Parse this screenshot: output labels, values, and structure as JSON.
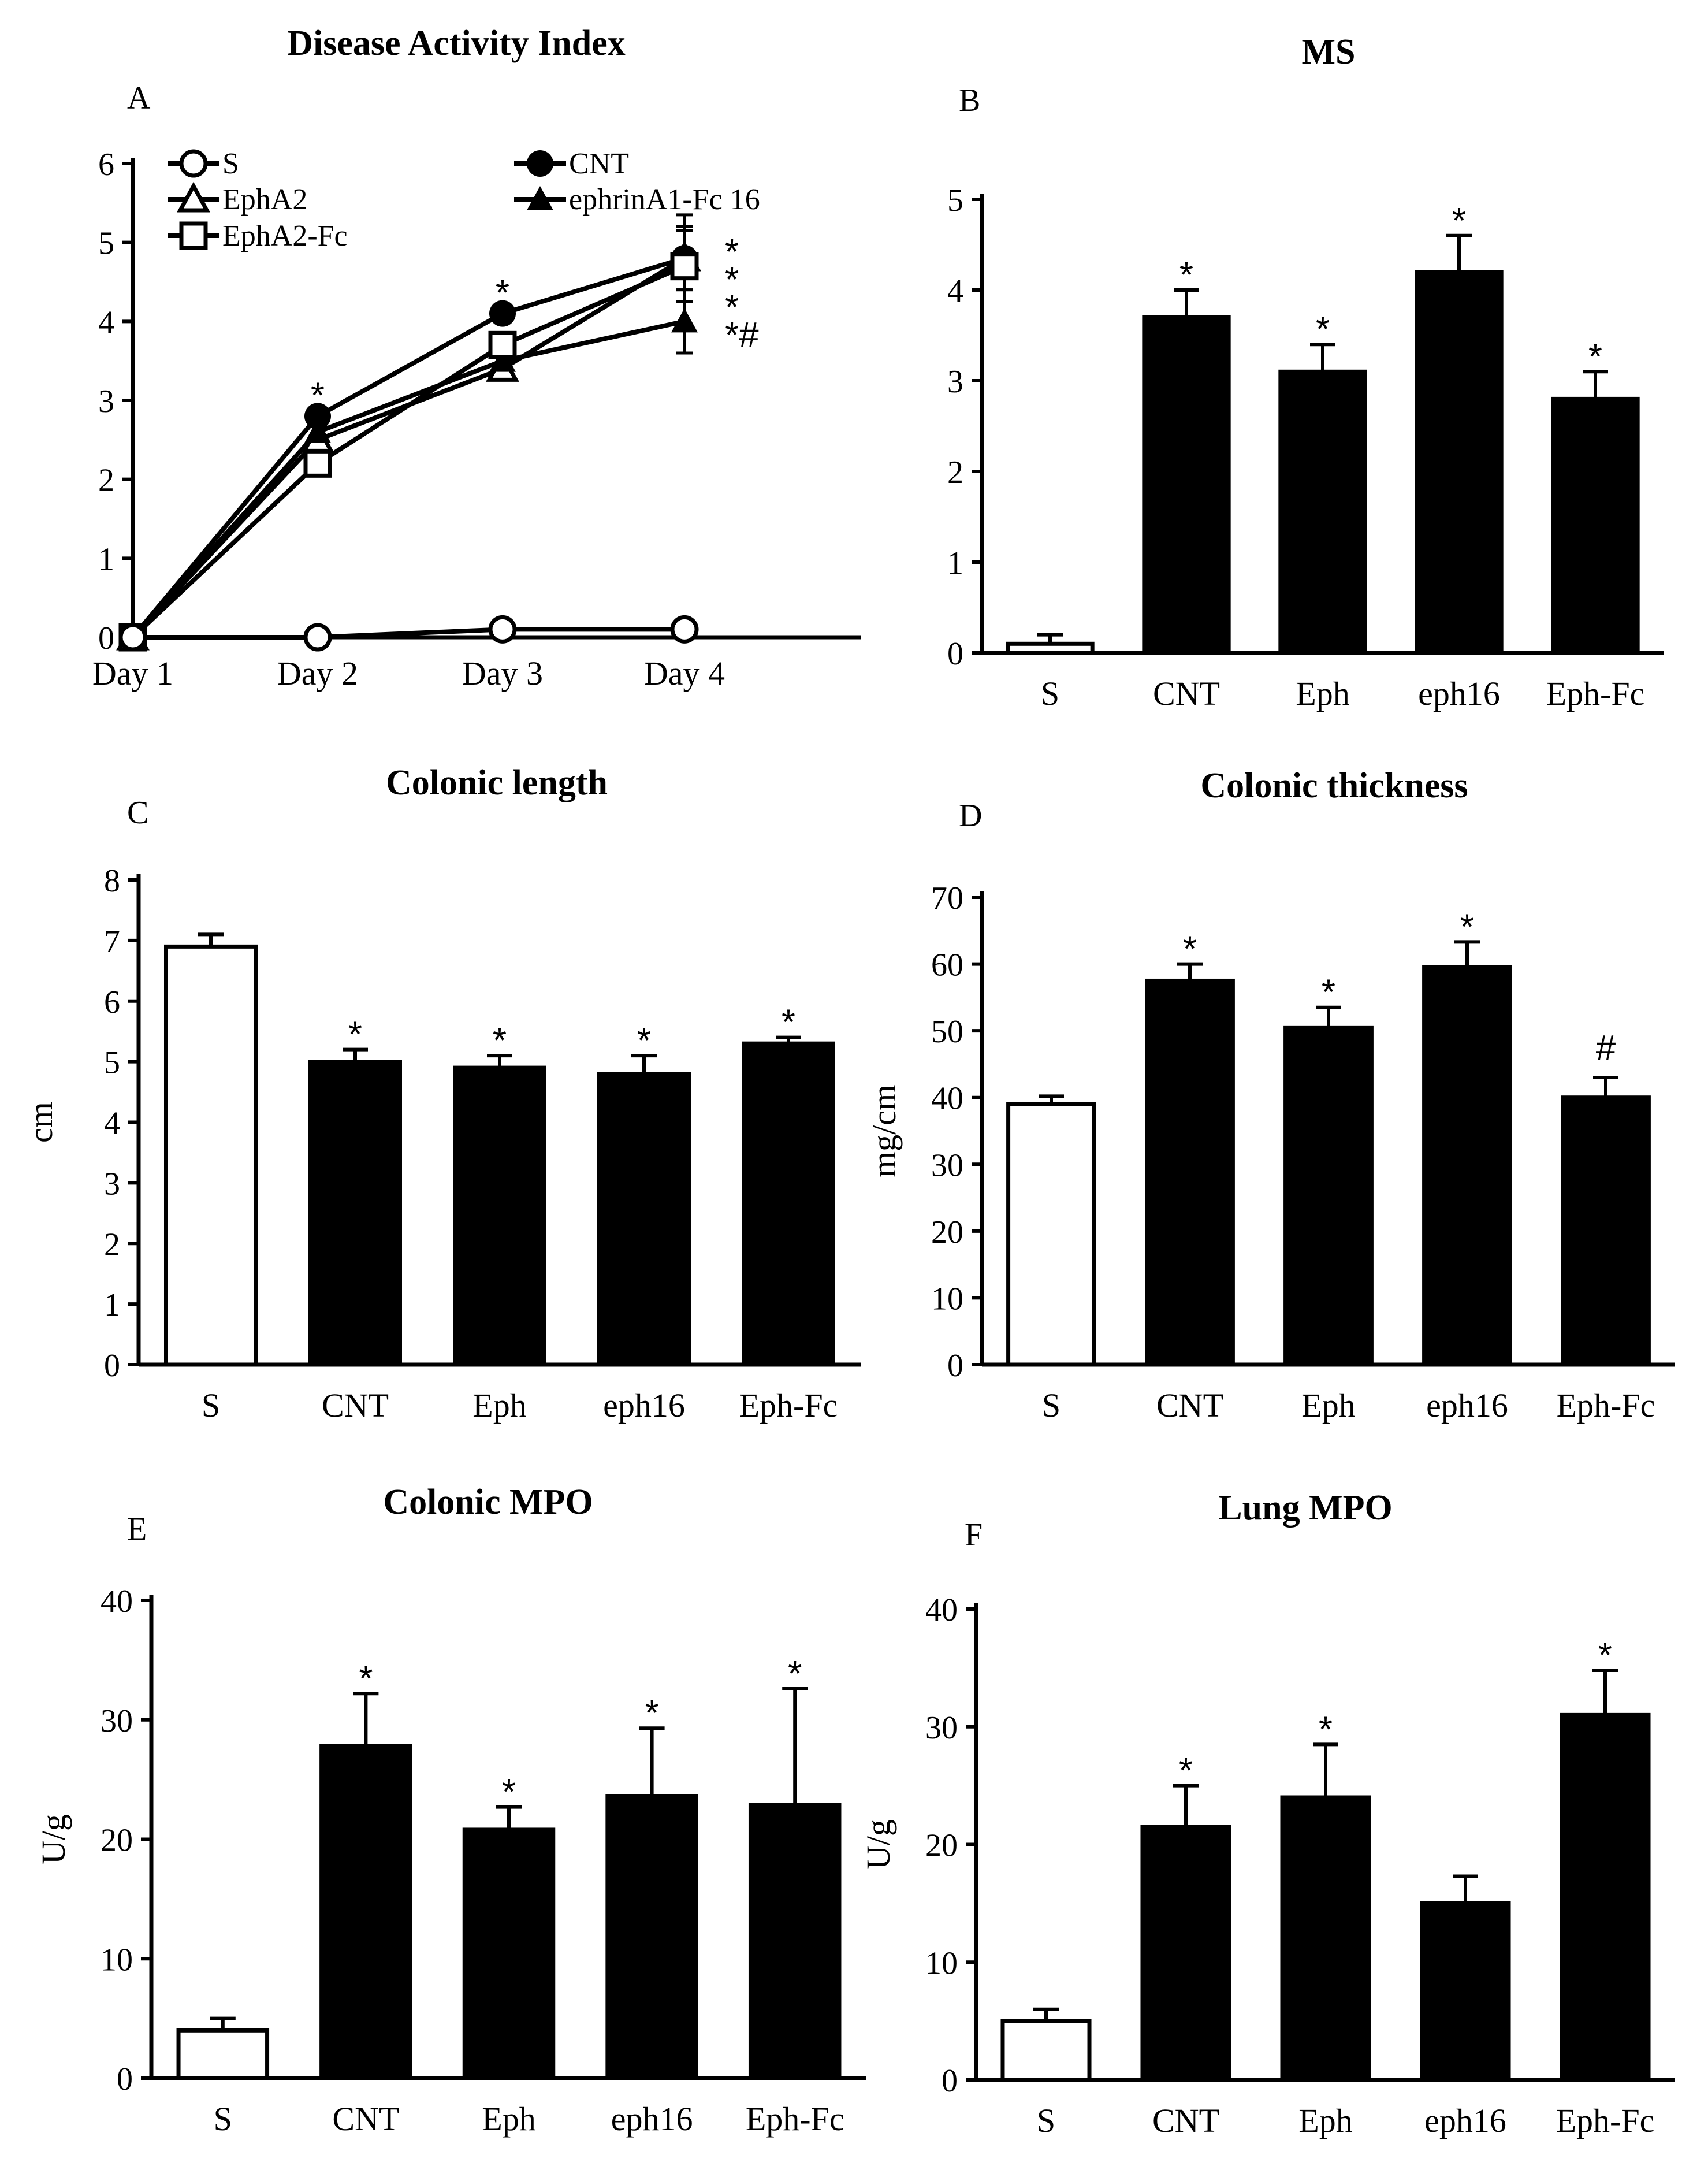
{
  "chart_data": [
    {
      "id": "A",
      "type": "line",
      "panel_label": "A",
      "title": "Disease Activity Index",
      "xlabel": "",
      "ylabel": "",
      "x": [
        "Day 1",
        "Day 2",
        "Day 3",
        "Day 4"
      ],
      "yticks": [
        "0",
        "1",
        "2",
        "3",
        "4",
        "5",
        "6"
      ],
      "ylim": [
        0,
        6
      ],
      "grid": false,
      "legend": "top",
      "series": [
        {
          "name": "S",
          "marker": "open-circle",
          "values": [
            0,
            0,
            0.1,
            0.1
          ],
          "errors": [
            0,
            0,
            0,
            0
          ]
        },
        {
          "name": "CNT",
          "marker": "filled-circle",
          "values": [
            0,
            2.8,
            4.1,
            4.8
          ],
          "errors": [
            0,
            0,
            0,
            0.55
          ]
        },
        {
          "name": "EphA2",
          "marker": "open-triangle",
          "values": [
            0,
            2.5,
            3.4,
            4.8
          ],
          "errors": [
            0,
            0,
            0,
            0.4
          ]
        },
        {
          "name": "ephrinA1-Fc 16",
          "marker": "filled-triangle",
          "values": [
            0,
            2.6,
            3.5,
            4.0
          ],
          "errors": [
            0,
            0,
            0,
            0.4
          ]
        },
        {
          "name": "EphA2-Fc",
          "marker": "open-square",
          "values": [
            0,
            2.2,
            3.7,
            4.7
          ],
          "errors": [
            0,
            0,
            0,
            0.45
          ]
        }
      ],
      "annotations": [
        {
          "text": "*",
          "x": "Day 2",
          "y": 3.2
        },
        {
          "text": "*",
          "x": "Day 3",
          "y": 4.5
        }
      ],
      "stacked_annotations": [
        "*",
        "*",
        "*",
        "*#"
      ]
    },
    {
      "id": "B",
      "type": "bar",
      "panel_label": "B",
      "title": "MS",
      "xlabel": "",
      "ylabel": "",
      "categories": [
        "S",
        "CNT",
        "Eph",
        "eph16",
        "Eph-Fc"
      ],
      "values": [
        0.1,
        3.7,
        3.1,
        4.2,
        2.8
      ],
      "errors": [
        0.1,
        0.3,
        0.3,
        0.4,
        0.3
      ],
      "bar_fill": [
        "#ffffff",
        "#000000",
        "#000000",
        "#000000",
        "#000000"
      ],
      "yticks": [
        "0",
        "1",
        "2",
        "3",
        "4",
        "5"
      ],
      "ylim": [
        0,
        5
      ],
      "grid": false,
      "marks": [
        "",
        "*",
        "*",
        "*",
        "*"
      ]
    },
    {
      "id": "C",
      "type": "bar",
      "panel_label": "C",
      "title": "Colonic length",
      "xlabel": "",
      "ylabel": "cm",
      "categories": [
        "S",
        "CNT",
        "Eph",
        "eph16",
        "Eph-Fc"
      ],
      "values": [
        6.9,
        5.0,
        4.9,
        4.8,
        5.3
      ],
      "errors": [
        0.2,
        0.2,
        0.2,
        0.3,
        0.1
      ],
      "bar_fill": [
        "#ffffff",
        "#000000",
        "#000000",
        "#000000",
        "#000000"
      ],
      "yticks": [
        "0",
        "1",
        "2",
        "3",
        "4",
        "5",
        "6",
        "7",
        "8"
      ],
      "ylim": [
        0,
        8
      ],
      "grid": false,
      "marks": [
        "",
        "*",
        "*",
        "*",
        "*"
      ]
    },
    {
      "id": "D",
      "type": "bar",
      "panel_label": "D",
      "title": "Colonic thickness",
      "xlabel": "",
      "ylabel": "mg/cm",
      "categories": [
        "S",
        "CNT",
        "Eph",
        "eph16",
        "Eph-Fc"
      ],
      "values": [
        39,
        57.5,
        50.5,
        59.5,
        40
      ],
      "errors": [
        1.2,
        2.5,
        3,
        3.8,
        3
      ],
      "bar_fill": [
        "#ffffff",
        "#000000",
        "#000000",
        "#000000",
        "#000000"
      ],
      "yticks": [
        "0",
        "10",
        "20",
        "30",
        "40",
        "50",
        "60",
        "70"
      ],
      "ylim": [
        0,
        70
      ],
      "grid": false,
      "marks": [
        "",
        "*",
        "*",
        "*",
        "#"
      ]
    },
    {
      "id": "E",
      "type": "bar",
      "panel_label": "E",
      "title": "Colonic MPO",
      "xlabel": "",
      "ylabel": "U/g",
      "categories": [
        "S",
        "CNT",
        "Eph",
        "eph16",
        "Eph-Fc"
      ],
      "values": [
        4,
        27.8,
        20.8,
        23.6,
        22.9
      ],
      "errors": [
        1,
        4.4,
        1.9,
        5.7,
        9.7
      ],
      "bar_fill": [
        "#ffffff",
        "#000000",
        "#000000",
        "#000000",
        "#000000"
      ],
      "yticks": [
        "0",
        "10",
        "20",
        "30",
        "40"
      ],
      "ylim": [
        0,
        40
      ],
      "grid": false,
      "marks": [
        "",
        "*",
        "*",
        "*",
        "*"
      ]
    },
    {
      "id": "F",
      "type": "bar",
      "panel_label": "F",
      "title": "Lung MPO",
      "xlabel": "",
      "ylabel": "U/g",
      "categories": [
        "S",
        "CNT",
        "Eph",
        "eph16",
        "Eph-Fc"
      ],
      "values": [
        5,
        21.5,
        24,
        15,
        31
      ],
      "errors": [
        1,
        3.5,
        4.5,
        2.3,
        3.8
      ],
      "bar_fill": [
        "#ffffff",
        "#000000",
        "#000000",
        "#000000",
        "#000000"
      ],
      "yticks": [
        "0",
        "10",
        "20",
        "30",
        "40"
      ],
      "ylim": [
        0,
        40
      ],
      "grid": false,
      "marks": [
        "",
        "*",
        "*",
        "",
        "*"
      ]
    }
  ]
}
